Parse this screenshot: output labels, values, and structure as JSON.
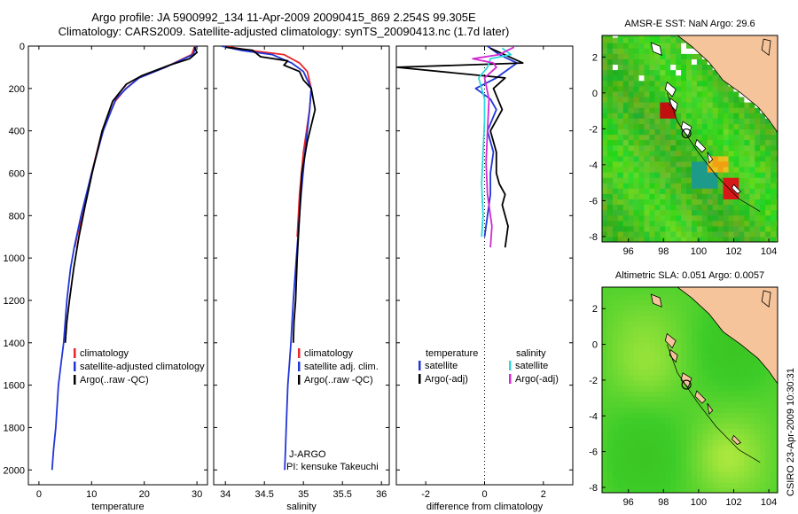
{
  "header": {
    "line1": "Argo profile: JA 5900992_134 11-Apr-2009 20090415_869 2.254S 99.305E",
    "line2": "Climatology: CARS2009. Satellite-adjusted climatology: synTS_20090413.nc (1.7d later)"
  },
  "credit": "CSIRO 23-Apr-2009 10:30:31",
  "colors": {
    "climatology": "#e8262b",
    "satellite": "#2236d8",
    "argo": "#000000",
    "cyan": "#2fd6dc",
    "magenta": "#d22ad2",
    "land": "#f6c49a"
  },
  "chart_data": [
    {
      "type": "line",
      "id": "temperature",
      "xlabel": "temperature",
      "ylabel": "",
      "xlim": [
        -2,
        32
      ],
      "ylim": [
        2070,
        0
      ],
      "xticks": [
        0,
        10,
        20,
        30
      ],
      "yticks": [
        0,
        200,
        400,
        600,
        800,
        1000,
        1200,
        1400,
        1600,
        1800,
        2000
      ],
      "legend": {
        "position": "lower-right",
        "entries": [
          "climatology",
          "satellite-adjusted climatology",
          "Argo(..raw -QC)"
        ]
      },
      "series": [
        {
          "name": "climatology",
          "color": "#e8262b",
          "x": [
            29.6,
            29.0,
            24.0,
            19.0,
            16.5,
            14.5,
            12.0,
            10.0,
            8.3,
            7.2,
            6.8
          ],
          "y": [
            0,
            40,
            100,
            150,
            200,
            260,
            400,
            600,
            800,
            900,
            950
          ]
        },
        {
          "name": "satellite-adjusted climatology",
          "color": "#2236d8",
          "x": [
            29.8,
            29.3,
            24.0,
            19.0,
            16.6,
            14.6,
            12.2,
            10.0,
            8.0,
            6.7,
            6.0,
            5.3,
            4.7,
            4.2,
            3.7,
            3.2,
            2.8,
            2.5
          ],
          "y": [
            0,
            40,
            100,
            150,
            200,
            250,
            400,
            600,
            800,
            950,
            1050,
            1200,
            1400,
            1500,
            1600,
            1800,
            1900,
            2000
          ]
        },
        {
          "name": "Argo(..raw -QC)",
          "color": "#000000",
          "x": [
            29.5,
            30.0,
            28.6,
            24.8,
            19.5,
            16.6,
            14.0,
            12.0,
            10.1,
            8.8,
            7.6,
            6.6,
            5.8,
            5.3,
            5.0
          ],
          "y": [
            5,
            30,
            60,
            90,
            140,
            180,
            260,
            400,
            600,
            750,
            900,
            1050,
            1200,
            1300,
            1400
          ]
        }
      ]
    },
    {
      "type": "line",
      "id": "salinity",
      "xlabel": "salinity",
      "ylabel": "",
      "xlim": [
        33.85,
        36.1
      ],
      "ylim": [
        2070,
        0
      ],
      "xticks": [
        34,
        34.5,
        35,
        35.5,
        36
      ],
      "yticks": [
        0,
        200,
        400,
        600,
        800,
        1000,
        1200,
        1400,
        1600,
        1800,
        2000
      ],
      "legend": {
        "position": "lower-right",
        "entries": [
          "climatology",
          "satellite adj. clim.",
          "Argo(..raw -QC)"
        ]
      },
      "annotations": [
        "J-ARGO",
        "PI: kensuke Takeuchi"
      ],
      "series": [
        {
          "name": "climatology",
          "color": "#e8262b",
          "x": [
            34.0,
            34.3,
            34.75,
            34.95,
            35.05,
            35.1,
            35.08,
            35.0,
            34.95,
            34.92
          ],
          "y": [
            0,
            20,
            40,
            80,
            120,
            200,
            300,
            500,
            700,
            900
          ]
        },
        {
          "name": "satellite adj. clim.",
          "color": "#2236d8",
          "x": [
            33.95,
            34.2,
            34.6,
            34.85,
            35.0,
            35.1,
            35.08,
            35.02,
            34.97,
            34.93,
            34.9,
            34.87,
            34.84,
            34.82,
            34.8,
            34.78,
            34.77,
            34.76
          ],
          "y": [
            0,
            20,
            40,
            80,
            120,
            200,
            300,
            500,
            700,
            900,
            1050,
            1200,
            1400,
            1500,
            1600,
            1800,
            1900,
            2000
          ]
        },
        {
          "name": "Argo(..raw -QC)",
          "color": "#000000",
          "x": [
            34.0,
            34.35,
            34.45,
            34.8,
            34.75,
            34.95,
            35.0,
            35.1,
            35.15,
            35.05,
            34.98,
            34.95,
            34.92,
            34.9,
            34.88,
            34.87
          ],
          "y": [
            5,
            20,
            50,
            70,
            90,
            120,
            160,
            200,
            300,
            450,
            600,
            800,
            1000,
            1200,
            1300,
            1400
          ]
        }
      ]
    },
    {
      "type": "line",
      "id": "difference",
      "xlabel": "difference from climatology",
      "ylabel": "",
      "xlim": [
        -3,
        3
      ],
      "ylim": [
        2070,
        0
      ],
      "xticks": [
        -2,
        0,
        2
      ],
      "yticks": [
        0,
        200,
        400,
        600,
        800,
        1000,
        1200,
        1400,
        1600,
        1800,
        2000
      ],
      "legend": {
        "position": "lower",
        "entries": [
          "temperature",
          "satellite",
          "Argo(-adj)",
          "salinity",
          "satellite",
          "Argo(-adj)"
        ]
      },
      "series": [
        {
          "name": "temperature satellite",
          "color": "#2236d8",
          "x": [
            0.1,
            0.5,
            1.1,
            0.4,
            -0.3,
            0.2,
            0.4,
            0.1,
            0.3,
            0.2,
            0.2,
            0.1,
            0.0
          ],
          "y": [
            0,
            40,
            80,
            150,
            200,
            250,
            300,
            400,
            500,
            600,
            700,
            800,
            900
          ]
        },
        {
          "name": "temperature Argo(-adj)",
          "color": "#000000",
          "x": [
            0.2,
            1.3,
            -3.0,
            0.7,
            0.3,
            0.6,
            0.2,
            0.4,
            0.4,
            0.5,
            0.7,
            0.6,
            0.7,
            0.8,
            0.7
          ],
          "y": [
            10,
            80,
            100,
            150,
            200,
            300,
            400,
            500,
            600,
            650,
            700,
            750,
            800,
            850,
            950
          ]
        },
        {
          "name": "salinity satellite",
          "color": "#2fd6dc",
          "x": [
            0.6,
            0.9,
            0.2,
            0.1,
            -0.2,
            0.0,
            0.0,
            -0.05,
            -0.1,
            -0.05,
            -0.1
          ],
          "y": [
            10,
            40,
            60,
            100,
            150,
            250,
            350,
            500,
            650,
            800,
            900
          ]
        },
        {
          "name": "salinity Argo(-adj)",
          "color": "#d22ad2",
          "x": [
            1.0,
            0.5,
            -0.4,
            0.3,
            0.4,
            0.0,
            0.15,
            0.1,
            0.05,
            0.1,
            0.2,
            0.25,
            0.2
          ],
          "y": [
            5,
            40,
            60,
            80,
            100,
            150,
            250,
            400,
            550,
            700,
            800,
            850,
            950
          ]
        }
      ]
    },
    {
      "type": "heatmap",
      "id": "sst-map",
      "title": "AMSR-E SST: NaN Argo: 29.6",
      "xlim": [
        94.5,
        104.5
      ],
      "ylim": [
        -8.3,
        3.2
      ],
      "xticks": [
        96,
        98,
        100,
        102,
        104
      ],
      "yticks": [
        2,
        0,
        -2,
        -4,
        -6,
        -8
      ],
      "argo_position": {
        "lon": 99.305,
        "lat": -2.254
      }
    },
    {
      "type": "heatmap",
      "id": "sla-map",
      "title": "Altimetric SLA: 0.051 Argo: 0.0057",
      "xlim": [
        94.5,
        104.5
      ],
      "ylim": [
        -8.3,
        3.2
      ],
      "xticks": [
        96,
        98,
        100,
        102,
        104
      ],
      "yticks": [
        2,
        0,
        -2,
        -4,
        -6,
        -8
      ],
      "argo_position": {
        "lon": 99.305,
        "lat": -2.254
      }
    }
  ]
}
